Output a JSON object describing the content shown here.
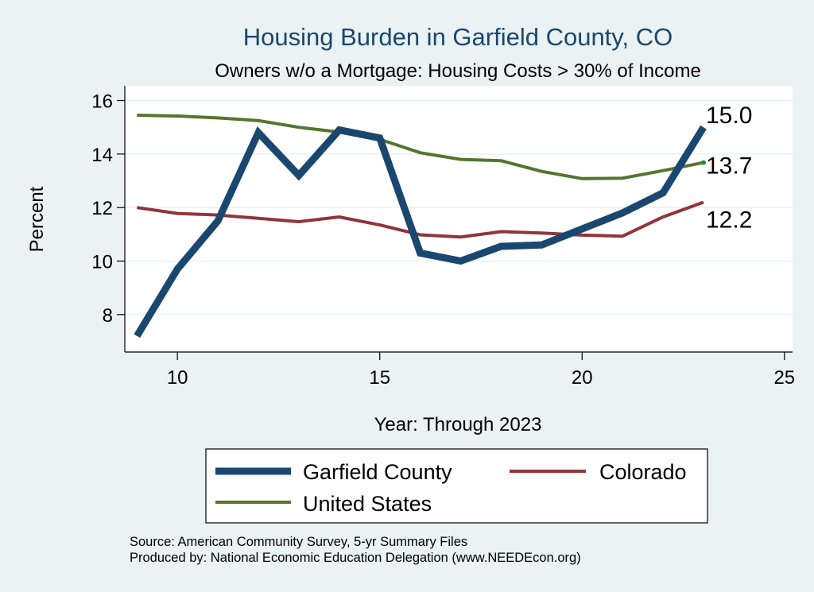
{
  "chart_data": {
    "type": "line",
    "title": "Housing Burden in Garfield County, CO",
    "subtitle": "Owners w/o a Mortgage: Housing Costs > 30% of Income",
    "xlabel": "Year: Through 2023",
    "ylabel": "Percent",
    "xlim": [
      8.7,
      25.2
    ],
    "ylim": [
      6.6,
      16.55
    ],
    "xticks": [
      10,
      15,
      20,
      25
    ],
    "yticks": [
      8,
      10,
      12,
      14,
      16
    ],
    "grid": true,
    "legend_position": "bottom",
    "x": [
      9,
      10,
      11,
      12,
      13,
      14,
      15,
      16,
      17,
      18,
      19,
      20,
      21,
      22,
      23
    ],
    "series": [
      {
        "name": "Garfield County",
        "color": "#1a476f",
        "values": [
          7.2,
          9.7,
          11.5,
          14.8,
          13.2,
          14.9,
          14.6,
          10.3,
          10.0,
          10.55,
          10.6,
          11.2,
          11.8,
          12.55,
          15.0
        ],
        "end_label": "15.0"
      },
      {
        "name": "Colorado",
        "color": "#90353b",
        "values": [
          12.0,
          11.78,
          11.72,
          11.6,
          11.47,
          11.65,
          11.35,
          10.98,
          10.9,
          11.1,
          11.05,
          10.97,
          10.93,
          11.65,
          12.2
        ],
        "end_label": "12.2"
      },
      {
        "name": "United States",
        "color": "#55752f",
        "values": [
          15.45,
          15.42,
          15.35,
          15.25,
          15.0,
          14.82,
          14.55,
          14.05,
          13.8,
          13.75,
          13.35,
          13.08,
          13.1,
          13.38,
          13.68
        ],
        "end_label": "13.7"
      }
    ],
    "notes": [
      "Source: American Community Survey, 5-yr Summary Files",
      "Produced by: National Economic Education Delegation (www.NEEDEcon.org)"
    ]
  }
}
